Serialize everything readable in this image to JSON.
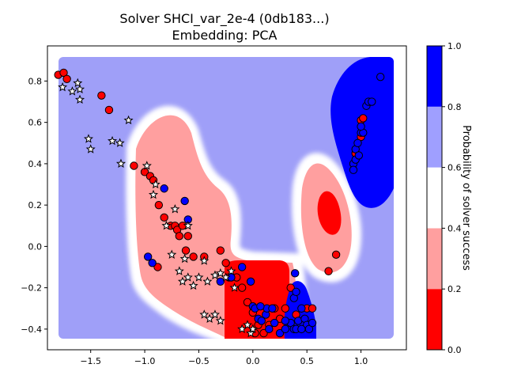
{
  "chart_data": {
    "type": "scatter",
    "title": "Solver SHCI_var_2e-4 (0db183...)",
    "subtitle": "Embedding: PCA",
    "xlabel": "",
    "ylabel": "",
    "xlim": [
      -1.9,
      1.42
    ],
    "ylim": [
      -0.5,
      0.97
    ],
    "xticks": [
      -1.5,
      -1.0,
      -0.5,
      0.0,
      0.5,
      1.0
    ],
    "xtick_labels": [
      "−1.5",
      "−1.0",
      "−0.5",
      "0.0",
      "0.5",
      "1.0"
    ],
    "yticks": [
      -0.4,
      -0.2,
      0.0,
      0.2,
      0.4,
      0.6,
      0.8
    ],
    "ytick_labels": [
      "−0.4",
      "−0.2",
      "0.0",
      "0.2",
      "0.4",
      "0.6",
      "0.8"
    ],
    "grid": false,
    "background_map": {
      "description": "probability of solver success over embedding space",
      "default_color": "#9f9ff8",
      "x_range": [
        -1.82,
        1.3
      ],
      "y_range": [
        -0.43,
        0.94
      ]
    },
    "colorbar": {
      "label": "Probability of solver success",
      "ticks": [
        0.0,
        0.2,
        0.4,
        0.6,
        0.8,
        1.0
      ],
      "tick_labels": [
        "0.0",
        "0.2",
        "0.4",
        "0.6",
        "0.8",
        "1.0"
      ],
      "bands": [
        {
          "from": 0.0,
          "to": 0.2,
          "color": "#ff0000"
        },
        {
          "from": 0.2,
          "to": 0.4,
          "color": "#ff9f9f"
        },
        {
          "from": 0.4,
          "to": 0.6,
          "color": "#ffffff"
        },
        {
          "from": 0.6,
          "to": 0.8,
          "color": "#9f9fff"
        },
        {
          "from": 0.8,
          "to": 1.0,
          "color": "#0000ff"
        }
      ]
    },
    "series": [
      {
        "marker": "circle",
        "color": "#ff0000",
        "points": [
          [
            -1.8,
            0.83
          ],
          [
            -1.75,
            0.84
          ],
          [
            -1.72,
            0.81
          ],
          [
            -1.4,
            0.73
          ],
          [
            -1.33,
            0.66
          ],
          [
            -1.1,
            0.39
          ],
          [
            -1.0,
            0.36
          ],
          [
            -0.95,
            0.34
          ],
          [
            -0.92,
            0.32
          ],
          [
            -0.87,
            0.2
          ],
          [
            -0.82,
            0.14
          ],
          [
            -0.76,
            0.1
          ],
          [
            -0.72,
            0.1
          ],
          [
            -0.7,
            0.08
          ],
          [
            -0.68,
            0.05
          ],
          [
            -0.65,
            0.1
          ],
          [
            -0.6,
            0.05
          ],
          [
            -0.62,
            -0.02
          ],
          [
            -0.55,
            -0.05
          ],
          [
            -0.45,
            -0.05
          ],
          [
            -0.3,
            -0.02
          ],
          [
            -0.25,
            -0.08
          ],
          [
            -0.22,
            -0.15
          ],
          [
            -0.15,
            -0.15
          ],
          [
            -0.1,
            -0.2
          ],
          [
            -0.05,
            -0.27
          ],
          [
            0.0,
            -0.32
          ],
          [
            0.05,
            -0.38
          ],
          [
            0.1,
            -0.42
          ],
          [
            0.15,
            -0.38
          ],
          [
            0.2,
            -0.3
          ],
          [
            0.25,
            -0.35
          ],
          [
            0.3,
            -0.3
          ],
          [
            0.35,
            -0.2
          ],
          [
            0.4,
            -0.33
          ],
          [
            0.5,
            -0.3
          ],
          [
            0.55,
            -0.3
          ],
          [
            0.7,
            -0.12
          ],
          [
            0.77,
            -0.04
          ],
          [
            0.95,
            0.45
          ],
          [
            1.0,
            0.53
          ],
          [
            1.0,
            0.61
          ],
          [
            1.02,
            0.62
          ],
          [
            -0.88,
            -0.1
          ],
          [
            0.02,
            -0.42
          ]
        ]
      },
      {
        "marker": "circle",
        "color": "#0000ff",
        "points": [
          [
            -0.97,
            -0.05
          ],
          [
            -0.93,
            -0.08
          ],
          [
            -0.82,
            0.28
          ],
          [
            -0.63,
            0.22
          ],
          [
            -0.6,
            0.13
          ],
          [
            -0.3,
            -0.17
          ],
          [
            -0.2,
            -0.15
          ],
          [
            -0.1,
            -0.1
          ],
          [
            -0.02,
            -0.17
          ],
          [
            0.0,
            -0.29
          ],
          [
            0.02,
            -0.3
          ],
          [
            0.05,
            -0.35
          ],
          [
            0.08,
            -0.36
          ],
          [
            0.12,
            -0.33
          ],
          [
            0.15,
            -0.4
          ],
          [
            0.2,
            -0.37
          ],
          [
            0.25,
            -0.42
          ],
          [
            0.3,
            -0.4
          ],
          [
            0.35,
            -0.37
          ],
          [
            0.38,
            -0.4
          ],
          [
            0.4,
            -0.4
          ],
          [
            0.42,
            -0.36
          ],
          [
            0.45,
            -0.3
          ],
          [
            0.48,
            -0.35
          ],
          [
            0.5,
            -0.38
          ],
          [
            0.52,
            -0.4
          ],
          [
            0.55,
            -0.37
          ],
          [
            0.38,
            -0.25
          ],
          [
            0.4,
            -0.22
          ],
          [
            0.39,
            -0.13
          ],
          [
            0.13,
            -0.3
          ],
          [
            0.07,
            -0.29
          ],
          [
            0.18,
            -0.3
          ],
          [
            0.3,
            -0.36
          ],
          [
            0.45,
            -0.4
          ],
          [
            0.93,
            0.4
          ],
          [
            0.93,
            0.37
          ],
          [
            0.95,
            0.47
          ],
          [
            0.97,
            0.5
          ],
          [
            1.0,
            0.55
          ],
          [
            1.02,
            0.55
          ],
          [
            1.0,
            0.58
          ],
          [
            1.05,
            0.68
          ],
          [
            1.07,
            0.7
          ],
          [
            1.1,
            0.7
          ],
          [
            1.18,
            0.82
          ],
          [
            0.95,
            0.42
          ],
          [
            0.98,
            0.44
          ]
        ]
      },
      {
        "marker": "star",
        "color": "#ffffff",
        "points": [
          [
            -1.76,
            0.77
          ],
          [
            -1.67,
            0.75
          ],
          [
            -1.62,
            0.79
          ],
          [
            -1.6,
            0.76
          ],
          [
            -1.6,
            0.71
          ],
          [
            -1.52,
            0.52
          ],
          [
            -1.5,
            0.47
          ],
          [
            -1.3,
            0.51
          ],
          [
            -1.23,
            0.5
          ],
          [
            -1.22,
            0.4
          ],
          [
            -1.15,
            0.61
          ],
          [
            -0.98,
            0.39
          ],
          [
            -0.92,
            0.25
          ],
          [
            -0.9,
            0.3
          ],
          [
            -0.72,
            0.18
          ],
          [
            -0.8,
            0.1
          ],
          [
            -0.6,
            0.1
          ],
          [
            -0.75,
            -0.04
          ],
          [
            -0.68,
            -0.12
          ],
          [
            -0.65,
            -0.17
          ],
          [
            -0.6,
            -0.15
          ],
          [
            -0.55,
            -0.19
          ],
          [
            -0.5,
            -0.15
          ],
          [
            -0.45,
            -0.07
          ],
          [
            -0.42,
            -0.17
          ],
          [
            -0.35,
            -0.14
          ],
          [
            -0.3,
            -0.13
          ],
          [
            -0.25,
            -0.15
          ],
          [
            -0.2,
            -0.12
          ],
          [
            -0.17,
            -0.2
          ],
          [
            -0.45,
            -0.33
          ],
          [
            -0.4,
            -0.35
          ],
          [
            -0.35,
            -0.33
          ],
          [
            -0.3,
            -0.36
          ],
          [
            -0.1,
            -0.4
          ],
          [
            -0.05,
            -0.38
          ],
          [
            -0.02,
            -0.42
          ],
          [
            0.0,
            -0.4
          ],
          [
            -0.63,
            -0.06
          ]
        ]
      }
    ]
  }
}
